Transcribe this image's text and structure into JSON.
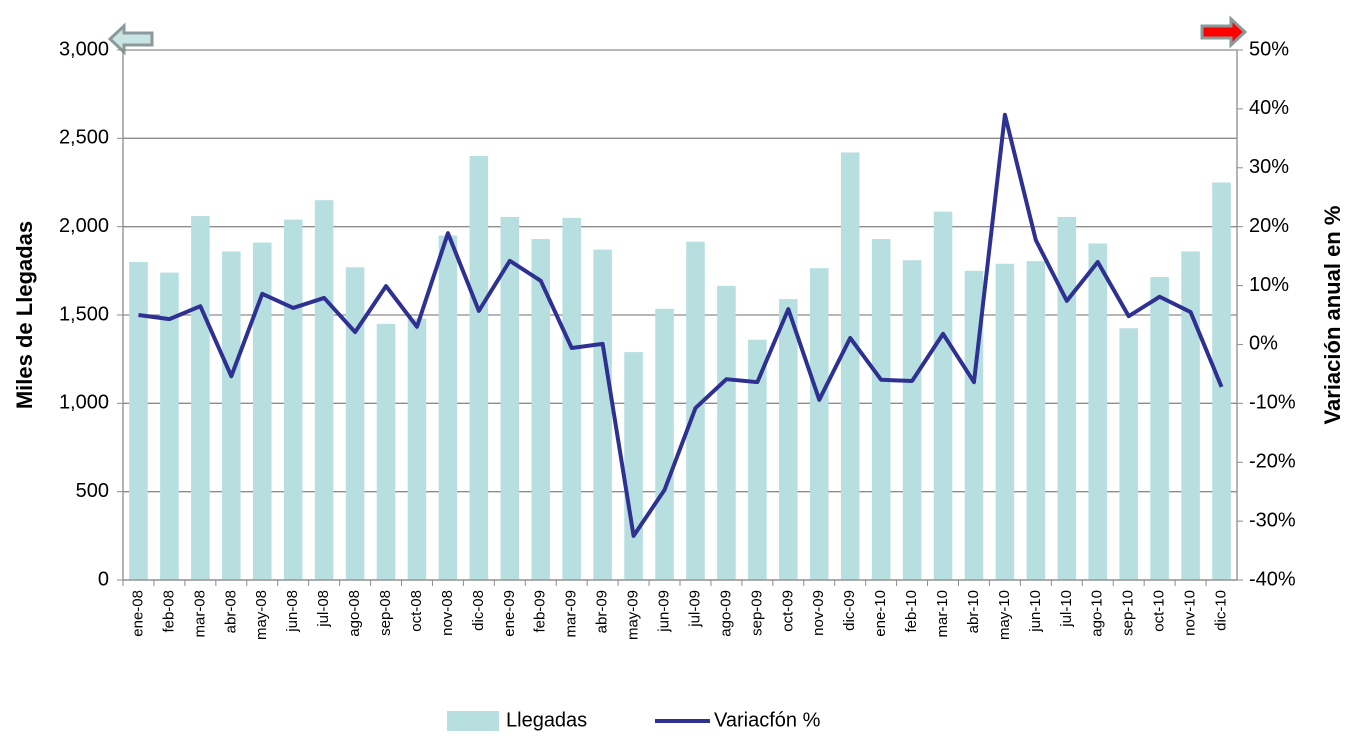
{
  "chart_data": {
    "type": "bar_line",
    "y_label": "Miles de Llegadas",
    "y2_label": "Variación anual en %",
    "categories": [
      "ene-08",
      "feb-08",
      "mar-08",
      "abr-08",
      "may-08",
      "jun-08",
      "jul-08",
      "ago-08",
      "sep-08",
      "oct-08",
      "nov-08",
      "dic-08",
      "ene-09",
      "feb-09",
      "mar-09",
      "abr-09",
      "may-09",
      "jun-09",
      "jul-09",
      "ago-09",
      "sep-09",
      "oct-09",
      "nov-09",
      "dic-09",
      "ene-10",
      "feb-10",
      "mar-10",
      "abr-10",
      "may-10",
      "jun-10",
      "jul-10",
      "ago-10",
      "sep-10",
      "oct-10",
      "nov-10",
      "dic-10"
    ],
    "series": [
      {
        "name": "Llegadas",
        "type": "bar",
        "color": "#b7dfe0",
        "values": [
          1800,
          1740,
          2060,
          1860,
          1910,
          2040,
          2150,
          1770,
          1450,
          1480,
          1950,
          2400,
          2055,
          1930,
          2050,
          1870,
          1290,
          1535,
          1915,
          1665,
          1360,
          1590,
          1765,
          2420,
          1930,
          1810,
          2085,
          1750,
          1790,
          1805,
          2055,
          1905,
          1425,
          1715,
          1860,
          2250
        ]
      },
      {
        "name": "Variacfón %",
        "type": "line",
        "axis": "y2",
        "color": "#2e3192",
        "values": [
          5.0,
          4.3,
          6.5,
          -5.4,
          8.6,
          6.2,
          7.9,
          2.1,
          9.9,
          3.0,
          18.9,
          5.7,
          14.2,
          10.8,
          -0.6,
          0.1,
          -32.5,
          -24.7,
          -10.8,
          -5.9,
          -6.4,
          6.0,
          -9.4,
          1.1,
          -6.0,
          -6.2,
          1.8,
          -6.4,
          39.0,
          17.7,
          7.4,
          14.0,
          4.8,
          8.1,
          5.5,
          -7.2
        ]
      }
    ],
    "ylim": [
      0,
      3000
    ],
    "yticks": [
      0,
      500,
      {
        "value": 1000,
        "label": "1,000"
      },
      {
        "value": 1500,
        "label": "1,500"
      },
      {
        "value": 2000,
        "label": "2,000"
      },
      {
        "value": 2500,
        "label": "2,500"
      },
      {
        "value": 3000,
        "label": "3,000"
      }
    ],
    "y2lim": [
      -40,
      50
    ],
    "y2ticks": [
      {
        "value": -40,
        "label": "-40%"
      },
      {
        "value": -30,
        "label": "-30%"
      },
      {
        "value": -20,
        "label": "-20%"
      },
      {
        "value": -10,
        "label": "-10%"
      },
      {
        "value": 0,
        "label": "0%"
      },
      {
        "value": 10,
        "label": "10%"
      },
      {
        "value": 20,
        "label": "20%"
      },
      {
        "value": 30,
        "label": "30%"
      },
      {
        "value": 40,
        "label": "40%"
      },
      {
        "value": 50,
        "label": "50%"
      }
    ],
    "grid": true,
    "legend": "bottom"
  }
}
